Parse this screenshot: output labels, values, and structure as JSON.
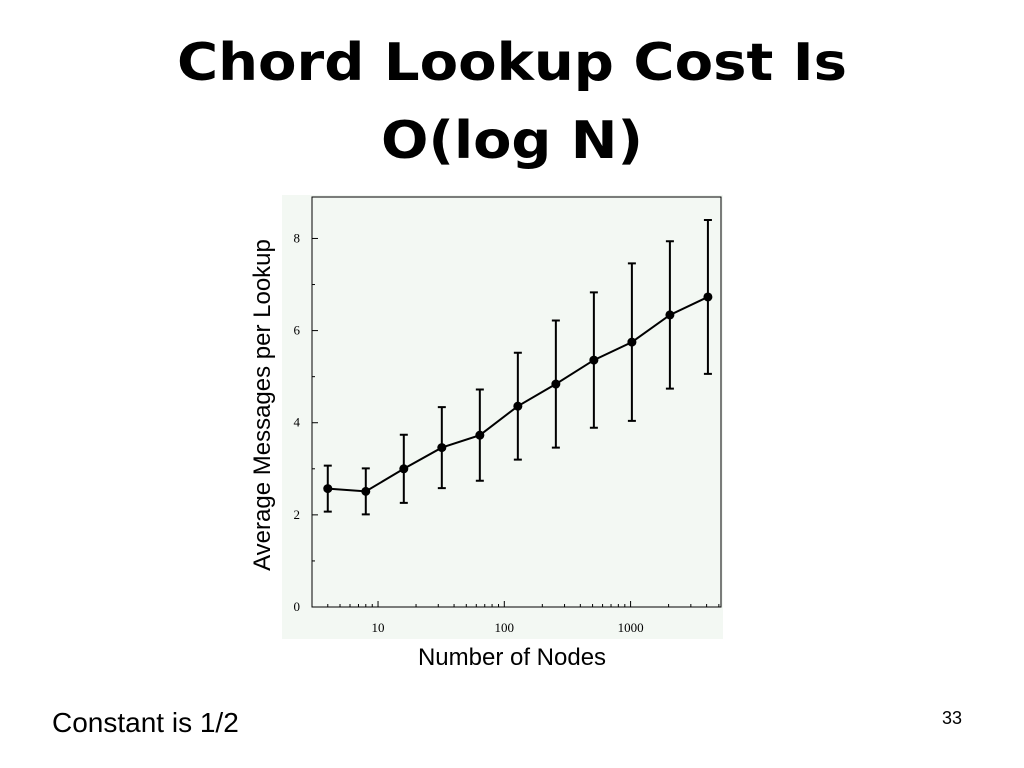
{
  "slide": {
    "title_lines": [
      "Chord Lookup Cost Is",
      "O(log N)"
    ],
    "note": "Constant is 1/2",
    "page_number": "33"
  },
  "chart_data": {
    "type": "line",
    "x_label": "Number of Nodes",
    "y_label": "Average Messages per Lookup",
    "x": [
      4,
      8,
      16,
      32,
      64,
      128,
      256,
      512,
      1024,
      2048,
      4096
    ],
    "values": [
      2.57,
      2.51,
      3.0,
      3.46,
      3.73,
      4.36,
      4.84,
      5.36,
      5.75,
      6.34,
      6.73
    ],
    "errors": [
      0.5,
      0.5,
      0.74,
      0.88,
      0.99,
      1.16,
      1.38,
      1.47,
      1.71,
      1.6,
      1.67
    ],
    "color": "#000000",
    "x_log": true,
    "xlim": [
      3,
      5200
    ],
    "ylim": [
      0,
      8.9
    ],
    "xticks": [
      10,
      100,
      1000
    ],
    "yticks": [
      0,
      2,
      4,
      6,
      8
    ],
    "xminorticks": [
      4,
      5,
      6,
      7,
      8,
      9,
      20,
      30,
      40,
      50,
      60,
      70,
      80,
      90,
      200,
      300,
      400,
      500,
      600,
      700,
      800,
      900,
      2000,
      3000,
      4000,
      5000
    ],
    "yminorticks": [
      1,
      3,
      5,
      7
    ]
  }
}
